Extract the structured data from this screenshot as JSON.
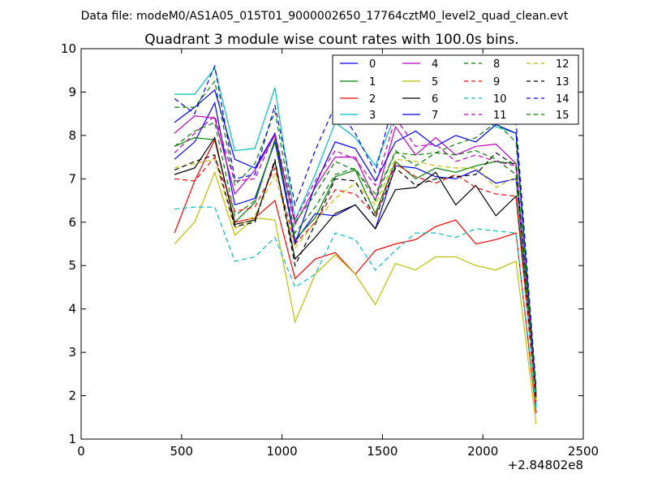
{
  "suptitle": "Data file: modeM0/AS1A05_015T01_9000002650_17764cztM0_level2_quad_clean.evt",
  "chart_data": {
    "type": "line",
    "title": "Quadrant 3 module wise count rates with 100.0s bins.",
    "xlabel": "",
    "ylabel": "",
    "x_offset_label": "+2.84802e8",
    "xlim": [
      0,
      2500
    ],
    "ylim": [
      1,
      10
    ],
    "xticks": [
      0,
      500,
      1000,
      1500,
      2000,
      2500
    ],
    "yticks": [
      1,
      2,
      3,
      4,
      5,
      6,
      7,
      8,
      9,
      10
    ],
    "grid": false,
    "legend_position": "top-right",
    "x": [
      465,
      565,
      665,
      765,
      865,
      965,
      1065,
      1165,
      1265,
      1365,
      1465,
      1565,
      1665,
      1765,
      1865,
      1965,
      2065,
      2165,
      2265
    ],
    "series": [
      {
        "name": "0",
        "color": "#0000ff",
        "dash": "solid",
        "values": [
          7.45,
          7.85,
          8.75,
          6.4,
          6.55,
          7.85,
          5.55,
          6.2,
          6.15,
          6.4,
          5.85,
          7.3,
          7.25,
          7.05,
          7.0,
          7.2,
          6.9,
          7.0,
          2.0
        ]
      },
      {
        "name": "1",
        "color": "#008000",
        "dash": "solid",
        "values": [
          7.75,
          7.95,
          7.9,
          6.0,
          6.45,
          7.9,
          5.6,
          6.1,
          7.05,
          7.2,
          6.2,
          7.4,
          7.0,
          7.25,
          7.15,
          7.3,
          7.4,
          7.35,
          1.75
        ]
      },
      {
        "name": "2",
        "color": "#ff0000",
        "dash": "solid",
        "values": [
          5.75,
          6.95,
          7.9,
          6.0,
          6.1,
          6.5,
          4.7,
          5.15,
          5.3,
          4.8,
          5.35,
          5.5,
          5.6,
          5.9,
          6.05,
          5.5,
          5.6,
          5.75,
          1.6
        ]
      },
      {
        "name": "3",
        "color": "#00bfbf",
        "dash": "solid",
        "values": [
          8.95,
          8.95,
          9.55,
          7.65,
          7.7,
          9.1,
          6.05,
          7.1,
          8.3,
          7.95,
          7.3,
          8.5,
          8.4,
          8.75,
          8.7,
          8.45,
          8.2,
          8.05,
          1.8
        ]
      },
      {
        "name": "4",
        "color": "#bf00bf",
        "dash": "solid",
        "values": [
          8.05,
          8.45,
          8.4,
          6.65,
          7.2,
          8.0,
          5.95,
          6.8,
          7.5,
          7.5,
          6.5,
          8.2,
          7.55,
          7.95,
          7.55,
          7.75,
          7.8,
          7.35,
          1.95
        ]
      },
      {
        "name": "5",
        "color": "#bfbf00",
        "dash": "solid",
        "values": [
          5.5,
          6.0,
          7.15,
          5.7,
          6.1,
          6.05,
          3.7,
          4.8,
          5.25,
          4.8,
          4.1,
          5.05,
          4.9,
          5.2,
          5.2,
          5.0,
          4.9,
          5.1,
          1.35
        ]
      },
      {
        "name": "6",
        "color": "#000000",
        "dash": "solid",
        "values": [
          7.1,
          7.25,
          7.95,
          5.95,
          6.05,
          7.4,
          5.15,
          5.65,
          6.2,
          6.4,
          5.85,
          6.75,
          6.8,
          7.15,
          6.4,
          6.85,
          6.15,
          6.6,
          2.05
        ]
      },
      {
        "name": "7",
        "color": "#0000ff",
        "dash": "solid",
        "values": [
          8.3,
          8.65,
          9.05,
          7.45,
          7.25,
          8.05,
          5.5,
          6.85,
          7.85,
          7.7,
          6.95,
          7.85,
          8.1,
          7.75,
          8.0,
          7.85,
          8.25,
          8.05,
          2.1
        ]
      },
      {
        "name": "8",
        "color": "#008000",
        "dash": "dashed",
        "values": [
          8.65,
          8.65,
          9.25,
          6.85,
          7.35,
          8.55,
          6.0,
          6.65,
          7.4,
          7.2,
          6.65,
          7.6,
          7.55,
          7.6,
          7.8,
          7.95,
          8.3,
          7.85,
          2.0
        ]
      },
      {
        "name": "9",
        "color": "#ff0000",
        "dash": "dashed",
        "values": [
          7.0,
          6.95,
          7.5,
          6.25,
          6.35,
          7.25,
          5.5,
          6.0,
          6.75,
          6.65,
          6.15,
          7.35,
          7.05,
          6.9,
          7.1,
          6.8,
          6.65,
          6.6,
          1.85
        ]
      },
      {
        "name": "10",
        "color": "#00bfbf",
        "dash": "dashed",
        "values": [
          6.3,
          6.35,
          6.35,
          5.1,
          5.2,
          5.65,
          4.5,
          4.8,
          5.75,
          5.6,
          4.9,
          5.35,
          5.75,
          5.75,
          5.65,
          5.85,
          5.8,
          5.75,
          1.7
        ]
      },
      {
        "name": "11",
        "color": "#bf00bf",
        "dash": "dashed",
        "values": [
          7.6,
          8.05,
          8.45,
          6.95,
          7.0,
          8.05,
          6.05,
          6.95,
          7.65,
          7.45,
          6.85,
          8.4,
          7.75,
          7.8,
          7.4,
          7.55,
          7.4,
          7.3,
          2.0
        ]
      },
      {
        "name": "12",
        "color": "#bfbf00",
        "dash": "dashed",
        "values": [
          7.25,
          7.35,
          7.45,
          5.85,
          6.15,
          7.1,
          5.4,
          6.0,
          6.55,
          6.9,
          6.4,
          7.45,
          7.4,
          7.3,
          7.25,
          7.25,
          6.8,
          7.05,
          1.9
        ]
      },
      {
        "name": "13",
        "color": "#000000",
        "dash": "dashed",
        "values": [
          7.2,
          7.4,
          7.55,
          5.9,
          6.0,
          7.45,
          5.0,
          5.95,
          7.0,
          6.95,
          6.1,
          7.25,
          6.85,
          7.0,
          7.05,
          7.1,
          7.6,
          7.3,
          1.95
        ]
      },
      {
        "name": "14",
        "color": "#0000ff",
        "dash": "dashed",
        "values": [
          8.85,
          8.5,
          9.6,
          7.0,
          7.1,
          8.7,
          6.4,
          7.65,
          8.7,
          8.05,
          7.15,
          8.95,
          8.7,
          8.7,
          8.5,
          8.45,
          8.55,
          8.3,
          2.2
        ]
      },
      {
        "name": "15",
        "color": "#008000",
        "dash": "dashed",
        "values": [
          7.75,
          8.1,
          8.3,
          6.15,
          6.5,
          7.9,
          5.75,
          6.35,
          7.1,
          7.25,
          6.5,
          7.65,
          7.3,
          7.6,
          7.55,
          7.65,
          7.45,
          7.1,
          2.05
        ]
      }
    ]
  }
}
